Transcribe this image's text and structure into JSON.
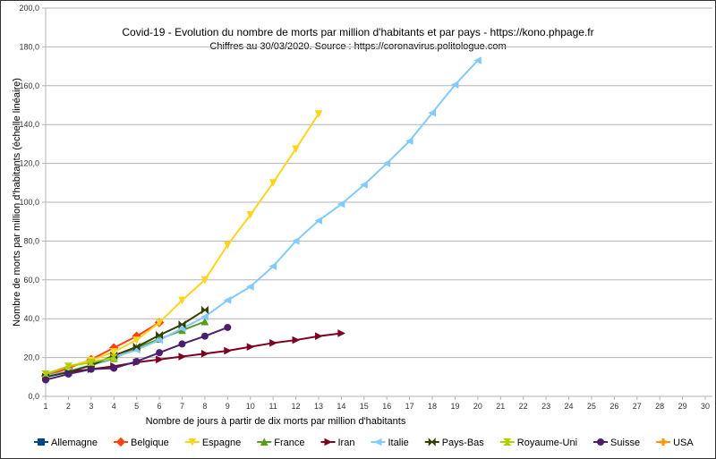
{
  "chart_data": {
    "type": "line",
    "title": "Covid-19 - Evolution du nombre de morts par million d'habitants et par pays - https://kono.phpage.fr",
    "subtitle": "Chiffres au 30/03/2020. Source : https://coronavirus.politologue.com",
    "xlabel": "Nombre de jours à partir de dix morts par million d'habitants",
    "ylabel": "Nombre de morts par million d'habitants (échelle linéaire)",
    "xlim": [
      1,
      30
    ],
    "ylim": [
      0,
      200
    ],
    "x_ticks": [
      1,
      2,
      3,
      4,
      5,
      6,
      7,
      8,
      9,
      10,
      11,
      12,
      13,
      14,
      15,
      16,
      17,
      18,
      19,
      20,
      21,
      22,
      23,
      24,
      25,
      26,
      27,
      28,
      29,
      30
    ],
    "y_ticks": [
      "0,0",
      "20,0",
      "40,0",
      "60,0",
      "80,0",
      "100,0",
      "120,0",
      "140,0",
      "160,0",
      "180,0",
      "200,0"
    ],
    "grid": "horizontal",
    "legend_position": "bottom",
    "series": [
      {
        "name": "Allemagne",
        "color": "#004586",
        "marker": "square",
        "values": []
      },
      {
        "name": "Belgique",
        "color": "#ff420e",
        "marker": "diamond",
        "values": [
          10.5,
          14.5,
          19,
          25,
          31,
          38
        ]
      },
      {
        "name": "Espagne",
        "color": "#ffd320",
        "marker": "triangle-down",
        "values": [
          11.5,
          15.5,
          18.5,
          23,
          29,
          38,
          49.5,
          60,
          78,
          93.5,
          110,
          127.5,
          145.5
        ]
      },
      {
        "name": "France",
        "color": "#579d1c",
        "marker": "triangle-up",
        "values": [
          10,
          13,
          16,
          19.5,
          25,
          29.5,
          34,
          38.5
        ]
      },
      {
        "name": "Iran",
        "color": "#7e0021",
        "marker": "triangle-right",
        "values": [
          10,
          12.5,
          14,
          15.5,
          17.5,
          19,
          20.5,
          22,
          23.5,
          25.5,
          27.5,
          29,
          31,
          32.5
        ]
      },
      {
        "name": "Italie",
        "color": "#83caff",
        "marker": "triangle-left",
        "values": [
          10.5,
          13,
          16,
          20,
          24,
          29,
          35,
          41,
          49.5,
          56.5,
          67,
          80,
          90.5,
          99,
          109,
          120,
          131.5,
          146,
          160.5,
          173
        ]
      },
      {
        "name": "Pays-Bas",
        "color": "#314004",
        "marker": "bowtie",
        "values": [
          10,
          12.5,
          16,
          21,
          25.5,
          31.5,
          37,
          44.5
        ]
      },
      {
        "name": "Royaume-Uni",
        "color": "#aecf00",
        "marker": "hourglass",
        "values": [
          11.5,
          15.5,
          17.5,
          20
        ]
      },
      {
        "name": "Suisse",
        "color": "#4b1f6f",
        "marker": "circle",
        "values": [
          8.5,
          11.5,
          14,
          14.5,
          18,
          22.5,
          27,
          31,
          35.5
        ]
      },
      {
        "name": "USA",
        "color": "#ff950e",
        "marker": "plus",
        "values": []
      }
    ]
  }
}
